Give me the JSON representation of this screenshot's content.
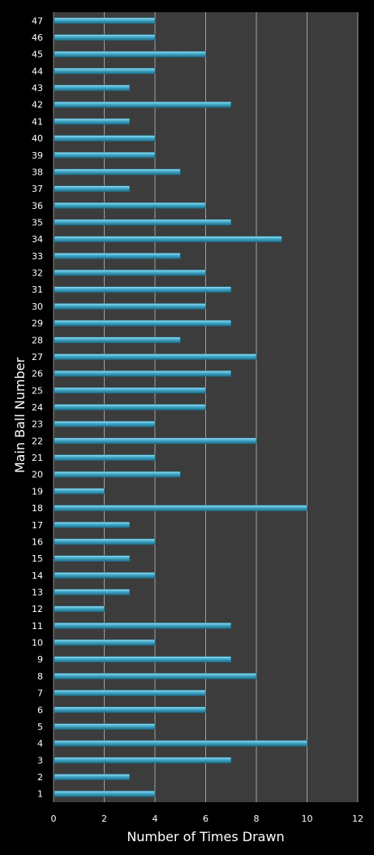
{
  "chart_data": {
    "type": "bar",
    "orientation": "horizontal",
    "xlabel": "Number of Times Drawn",
    "ylabel": "Main Ball Number",
    "xlim": [
      0,
      12
    ],
    "xticks": [
      "0",
      "2",
      "4",
      "6",
      "8",
      "10",
      "12"
    ],
    "grid": "vertical",
    "categories": [
      "1",
      "2",
      "3",
      "4",
      "5",
      "6",
      "7",
      "8",
      "9",
      "10",
      "11",
      "12",
      "13",
      "14",
      "15",
      "16",
      "17",
      "18",
      "19",
      "20",
      "21",
      "22",
      "23",
      "24",
      "25",
      "26",
      "27",
      "28",
      "29",
      "30",
      "31",
      "32",
      "33",
      "34",
      "35",
      "36",
      "37",
      "38",
      "39",
      "40",
      "41",
      "42",
      "43",
      "44",
      "45",
      "46",
      "47"
    ],
    "values": [
      4,
      3,
      7,
      10,
      4,
      6,
      6,
      8,
      7,
      4,
      7,
      2,
      3,
      4,
      3,
      4,
      3,
      10,
      2,
      5,
      4,
      8,
      4,
      6,
      6,
      7,
      8,
      5,
      7,
      6,
      7,
      6,
      5,
      9,
      7,
      6,
      3,
      5,
      4,
      4,
      3,
      7,
      3,
      4,
      6,
      4,
      4
    ],
    "colors": {
      "background": "#000000",
      "plot_area": "#3c3c3c",
      "gridline": "#a0a0a0",
      "bar": "#4db3d3",
      "bar_highlight": "#a8e4f5",
      "bar_shadow": "#1c6e89",
      "text": "#ffffff"
    }
  }
}
